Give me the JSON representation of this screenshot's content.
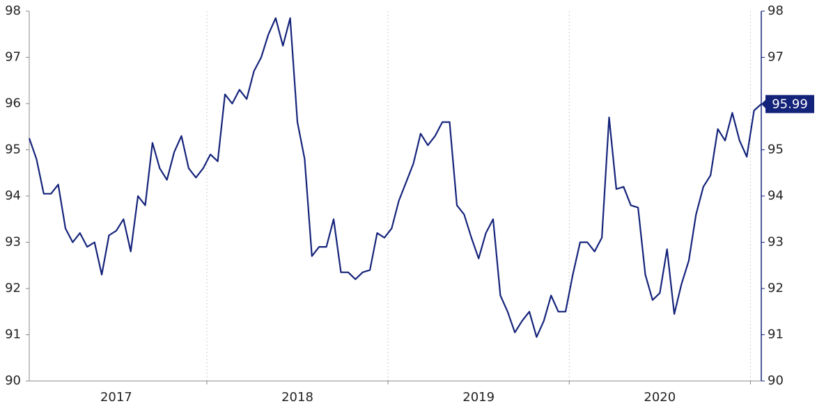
{
  "chart_data": {
    "type": "line",
    "x": [
      2017.02,
      2017.06,
      2017.1,
      2017.14,
      2017.18,
      2017.22,
      2017.26,
      2017.3,
      2017.34,
      2017.38,
      2017.42,
      2017.46,
      2017.5,
      2017.54,
      2017.58,
      2017.62,
      2017.66,
      2017.7,
      2017.74,
      2017.78,
      2017.82,
      2017.86,
      2017.9,
      2017.94,
      2017.98,
      2018.02,
      2018.06,
      2018.1,
      2018.14,
      2018.18,
      2018.22,
      2018.26,
      2018.3,
      2018.34,
      2018.38,
      2018.42,
      2018.46,
      2018.5,
      2018.54,
      2018.58,
      2018.62,
      2018.66,
      2018.7,
      2018.74,
      2018.78,
      2018.82,
      2018.86,
      2018.9,
      2018.94,
      2018.98,
      2019.02,
      2019.06,
      2019.1,
      2019.14,
      2019.18,
      2019.22,
      2019.26,
      2019.3,
      2019.34,
      2019.38,
      2019.42,
      2019.46,
      2019.5,
      2019.54,
      2019.58,
      2019.62,
      2019.66,
      2019.7,
      2019.74,
      2019.78,
      2019.82,
      2019.86,
      2019.9,
      2019.94,
      2019.98,
      2020.02,
      2020.06,
      2020.1,
      2020.14,
      2020.18,
      2020.22,
      2020.26,
      2020.3,
      2020.34,
      2020.38,
      2020.42,
      2020.46,
      2020.5,
      2020.54,
      2020.58,
      2020.62,
      2020.66,
      2020.7,
      2020.74,
      2020.78,
      2020.82,
      2020.86,
      2020.9,
      2020.94,
      2020.98,
      2021.02,
      2021.06
    ],
    "series": [
      {
        "color": "#14237a",
        "values": [
          95.25,
          94.8,
          94.05,
          94.05,
          94.25,
          93.3,
          93.0,
          93.2,
          92.9,
          93.0,
          92.3,
          93.15,
          93.25,
          93.5,
          92.8,
          94.0,
          93.8,
          95.15,
          94.6,
          94.35,
          94.95,
          95.3,
          94.6,
          94.4,
          94.6,
          94.9,
          94.75,
          96.2,
          96.0,
          96.3,
          96.1,
          96.7,
          97.0,
          97.5,
          97.85,
          97.25,
          97.85,
          95.6,
          94.8,
          92.7,
          92.9,
          92.9,
          93.5,
          92.35,
          92.35,
          92.2,
          92.35,
          92.4,
          93.2,
          93.1,
          93.3,
          93.9,
          94.3,
          94.7,
          95.35,
          95.1,
          95.3,
          95.6,
          95.6,
          93.8,
          93.6,
          93.1,
          92.65,
          93.2,
          93.5,
          91.85,
          91.5,
          91.05,
          91.3,
          91.5,
          90.95,
          91.3,
          91.85,
          91.5,
          91.5,
          92.3,
          93.0,
          93.0,
          92.8,
          93.1,
          95.7,
          94.15,
          94.2,
          93.8,
          93.75,
          92.3,
          91.75,
          91.9,
          92.85,
          91.45,
          92.1,
          92.6,
          93.6,
          94.2,
          94.45,
          95.45,
          95.2,
          95.8,
          95.2,
          94.85,
          95.85,
          95.99
        ]
      }
    ],
    "xlim": [
      2017.02,
      2021.06
    ],
    "xticks": [
      {
        "value": 2017.5,
        "label": "2017"
      },
      {
        "value": 2018.5,
        "label": "2018"
      },
      {
        "value": 2019.5,
        "label": "2019"
      },
      {
        "value": 2020.5,
        "label": "2020"
      }
    ],
    "xgrid": [
      2018,
      2019,
      2020,
      2021
    ],
    "ylim": [
      90,
      98
    ],
    "yticks": [
      90,
      91,
      92,
      93,
      94,
      95,
      96,
      97,
      98
    ],
    "y2lim": [
      90,
      98
    ],
    "y2ticks": [
      90,
      91,
      92,
      93,
      94,
      95,
      96,
      97,
      98
    ],
    "end_label": true
  }
}
